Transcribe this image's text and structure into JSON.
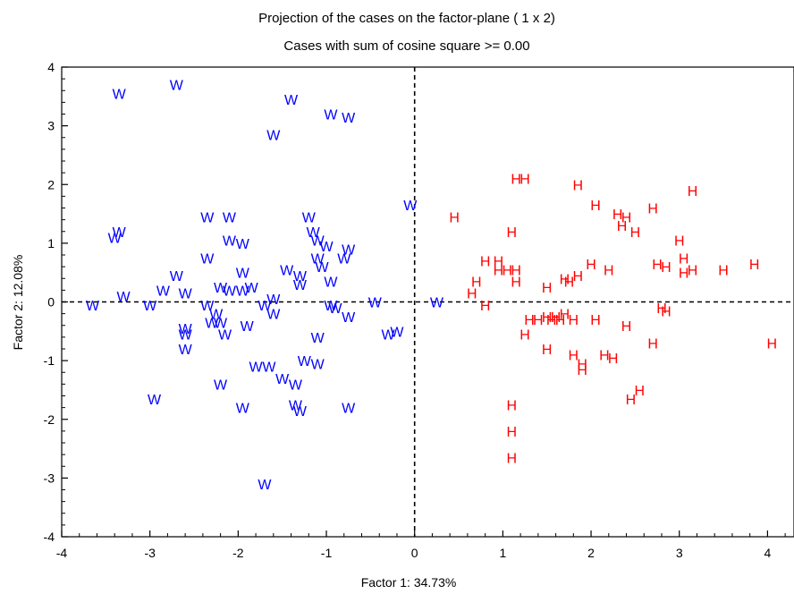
{
  "chart_data": {
    "type": "scatter",
    "title": "Projection of the cases on the factor-plane (  1 x   2)",
    "subtitle": "Cases with sum of cosine square >=  0.00",
    "xlabel": "Factor 1: 34.73%",
    "ylabel": "Factor 2: 12.08%",
    "xlim": [
      -4,
      4.3
    ],
    "ylim": [
      -4,
      4
    ],
    "xticks": [
      -4,
      -3,
      -2,
      -1,
      0,
      1,
      2,
      3,
      4
    ],
    "yticks": [
      -4,
      -3,
      -2,
      -1,
      0,
      1,
      2,
      3,
      4
    ],
    "reference_lines": {
      "x": 0,
      "y": 0,
      "style": "dashed"
    },
    "colors": {
      "W": "#0000ff",
      "H": "#ff0000",
      "axis": "#000000"
    },
    "series": [
      {
        "name": "W",
        "marker": "W",
        "color": "#0000ff",
        "points": [
          [
            -3.35,
            3.55
          ],
          [
            -2.7,
            3.7
          ],
          [
            -1.4,
            3.45
          ],
          [
            -0.95,
            3.2
          ],
          [
            -0.75,
            3.15
          ],
          [
            -1.6,
            2.85
          ],
          [
            -2.35,
            1.45
          ],
          [
            -2.1,
            1.45
          ],
          [
            -1.2,
            1.45
          ],
          [
            -3.35,
            1.2
          ],
          [
            -3.4,
            1.1
          ],
          [
            -1.15,
            1.2
          ],
          [
            -1.1,
            1.05
          ],
          [
            -2.1,
            1.05
          ],
          [
            -1.95,
            1.0
          ],
          [
            -1.0,
            0.95
          ],
          [
            -0.75,
            0.9
          ],
          [
            -0.8,
            0.75
          ],
          [
            -2.35,
            0.75
          ],
          [
            -1.1,
            0.75
          ],
          [
            -1.05,
            0.6
          ],
          [
            -1.45,
            0.55
          ],
          [
            -1.95,
            0.5
          ],
          [
            -2.7,
            0.45
          ],
          [
            -1.3,
            0.45
          ],
          [
            -1.3,
            0.3
          ],
          [
            -0.95,
            0.35
          ],
          [
            -2.2,
            0.25
          ],
          [
            -2.1,
            0.2
          ],
          [
            -1.95,
            0.2
          ],
          [
            -1.85,
            0.25
          ],
          [
            -2.85,
            0.2
          ],
          [
            -2.6,
            0.15
          ],
          [
            -3.3,
            0.1
          ],
          [
            -1.6,
            0.05
          ],
          [
            -0.45,
            0.0
          ],
          [
            -3.65,
            -0.05
          ],
          [
            -3.0,
            -0.05
          ],
          [
            -2.35,
            -0.05
          ],
          [
            -1.7,
            -0.05
          ],
          [
            -0.95,
            -0.05
          ],
          [
            -0.9,
            -0.1
          ],
          [
            -2.25,
            -0.2
          ],
          [
            -1.6,
            -0.2
          ],
          [
            -0.75,
            -0.25
          ],
          [
            -2.2,
            -0.35
          ],
          [
            -2.3,
            -0.35
          ],
          [
            -1.9,
            -0.4
          ],
          [
            -2.6,
            -0.45
          ],
          [
            -2.6,
            -0.55
          ],
          [
            -2.15,
            -0.55
          ],
          [
            -0.3,
            -0.55
          ],
          [
            -0.2,
            -0.5
          ],
          [
            -1.1,
            -0.6
          ],
          [
            -2.6,
            -0.8
          ],
          [
            -1.8,
            -1.1
          ],
          [
            -1.65,
            -1.1
          ],
          [
            -1.25,
            -1.0
          ],
          [
            -1.1,
            -1.05
          ],
          [
            -1.5,
            -1.3
          ],
          [
            -1.35,
            -1.4
          ],
          [
            -2.2,
            -1.4
          ],
          [
            -2.95,
            -1.65
          ],
          [
            -1.35,
            -1.75
          ],
          [
            -1.3,
            -1.85
          ],
          [
            -1.95,
            -1.8
          ],
          [
            -0.75,
            -1.8
          ],
          [
            -1.7,
            -3.1
          ],
          [
            -0.05,
            1.65
          ],
          [
            0.25,
            0.0
          ]
        ]
      },
      {
        "name": "H",
        "marker": "H",
        "color": "#ff0000",
        "points": [
          [
            1.15,
            2.1
          ],
          [
            1.25,
            2.1
          ],
          [
            1.85,
            2.0
          ],
          [
            3.15,
            1.9
          ],
          [
            2.05,
            1.65
          ],
          [
            2.7,
            1.6
          ],
          [
            2.3,
            1.5
          ],
          [
            2.4,
            1.45
          ],
          [
            0.45,
            1.45
          ],
          [
            2.35,
            1.3
          ],
          [
            2.5,
            1.2
          ],
          [
            1.1,
            1.2
          ],
          [
            3.0,
            1.05
          ],
          [
            3.85,
            0.65
          ],
          [
            3.05,
            0.75
          ],
          [
            0.8,
            0.7
          ],
          [
            0.95,
            0.7
          ],
          [
            2.0,
            0.65
          ],
          [
            2.75,
            0.65
          ],
          [
            2.85,
            0.6
          ],
          [
            3.15,
            0.55
          ],
          [
            3.5,
            0.55
          ],
          [
            0.95,
            0.55
          ],
          [
            1.05,
            0.55
          ],
          [
            1.15,
            0.55
          ],
          [
            2.2,
            0.55
          ],
          [
            3.05,
            0.5
          ],
          [
            1.7,
            0.4
          ],
          [
            1.85,
            0.45
          ],
          [
            1.75,
            0.35
          ],
          [
            0.7,
            0.35
          ],
          [
            1.15,
            0.35
          ],
          [
            1.5,
            0.25
          ],
          [
            0.65,
            0.15
          ],
          [
            0.8,
            -0.05
          ],
          [
            2.8,
            -0.1
          ],
          [
            2.85,
            -0.15
          ],
          [
            1.3,
            -0.3
          ],
          [
            1.4,
            -0.3
          ],
          [
            1.5,
            -0.25
          ],
          [
            1.6,
            -0.25
          ],
          [
            1.7,
            -0.2
          ],
          [
            1.55,
            -0.3
          ],
          [
            1.65,
            -0.3
          ],
          [
            1.8,
            -0.3
          ],
          [
            2.05,
            -0.3
          ],
          [
            2.4,
            -0.4
          ],
          [
            1.25,
            -0.55
          ],
          [
            2.7,
            -0.7
          ],
          [
            4.05,
            -0.7
          ],
          [
            1.5,
            -0.8
          ],
          [
            1.8,
            -0.9
          ],
          [
            1.9,
            -1.05
          ],
          [
            1.9,
            -1.15
          ],
          [
            2.15,
            -0.9
          ],
          [
            2.25,
            -0.95
          ],
          [
            2.55,
            -1.5
          ],
          [
            2.45,
            -1.65
          ],
          [
            1.1,
            -1.75
          ],
          [
            1.1,
            -2.2
          ],
          [
            1.1,
            -2.65
          ]
        ]
      }
    ]
  }
}
